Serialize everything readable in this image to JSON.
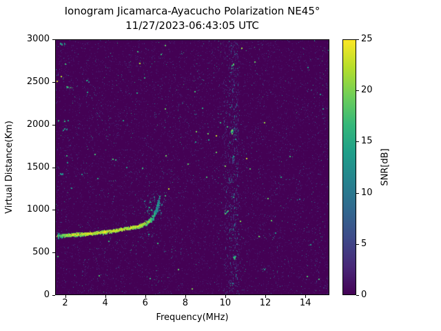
{
  "chart_data": {
    "type": "heatmap",
    "title": "Ionogram Jicamarca-Ayacucho Polarization NE45°",
    "subtitle": "11/27/2023-06:43:05 UTC",
    "xlabel": "Frequency(MHz)",
    "ylabel": "Virtual Distance(Km)",
    "xlim": [
      1.5,
      15.2
    ],
    "ylim": [
      0,
      3000
    ],
    "x_ticks": [
      2,
      4,
      6,
      8,
      10,
      12,
      14
    ],
    "y_ticks": [
      0,
      500,
      1000,
      1500,
      2000,
      2500,
      3000
    ],
    "grid": false,
    "colorbar": {
      "label": "SNR[dB]",
      "ticks": [
        0,
        5,
        10,
        15,
        20,
        25
      ],
      "min": 0,
      "max": 25,
      "colormap": "viridis",
      "viridis_stops": [
        "#440154",
        "#482878",
        "#3e4a89",
        "#31688e",
        "#26828e",
        "#1f9e89",
        "#35b779",
        "#6ece58",
        "#b5de2b",
        "#fde725"
      ]
    },
    "echo_trace": {
      "description": "F-region ionospheric echo trace, critical frequency near 6.7 MHz",
      "points": [
        [
          1.65,
          700
        ],
        [
          2.0,
          706
        ],
        [
          2.5,
          714
        ],
        [
          3.0,
          724
        ],
        [
          3.5,
          735
        ],
        [
          4.0,
          748
        ],
        [
          4.5,
          763
        ],
        [
          5.0,
          782
        ],
        [
          5.3,
          795
        ],
        [
          5.6,
          812
        ],
        [
          5.9,
          835
        ],
        [
          6.1,
          858
        ],
        [
          6.25,
          885
        ],
        [
          6.35,
          915
        ],
        [
          6.45,
          950
        ],
        [
          6.52,
          990
        ],
        [
          6.58,
          1030
        ],
        [
          6.63,
          1070
        ],
        [
          6.68,
          1110
        ]
      ],
      "snr_profile": [
        [
          1.6,
          18
        ],
        [
          1.9,
          21
        ],
        [
          2.3,
          24
        ],
        [
          5.8,
          24
        ],
        [
          6.2,
          21
        ],
        [
          6.45,
          16
        ],
        [
          6.7,
          12
        ]
      ],
      "width_profile": [
        [
          1.6,
          3.5
        ],
        [
          2.2,
          3
        ],
        [
          5.6,
          3
        ],
        [
          6.2,
          4
        ],
        [
          6.5,
          6
        ],
        [
          6.7,
          8
        ]
      ],
      "tip_scatter": {
        "freq_range": [
          5.95,
          6.8
        ],
        "vdist_range": [
          930,
          1180
        ],
        "count": 50,
        "snr": [
          8,
          16
        ]
      }
    },
    "interference_bands": [
      {
        "freq_range": [
          10.15,
          10.65
        ],
        "count": 520,
        "snr": [
          2,
          13
        ]
      },
      {
        "freq_range": [
          9.9,
          10.1
        ],
        "count": 120,
        "snr": [
          2,
          9
        ]
      }
    ],
    "hotspots": [
      {
        "freq": 1.72,
        "vdist": 695,
        "snr": 20,
        "n": 12,
        "w": 8,
        "h": 6
      },
      {
        "freq": 2.2,
        "vdist": 2440,
        "snr": 16,
        "n": 10,
        "w": 10,
        "h": 3
      },
      {
        "freq": 1.85,
        "vdist": 2950,
        "snr": 14,
        "n": 7,
        "w": 8,
        "h": 3
      },
      {
        "freq": 2.0,
        "vdist": 1950,
        "snr": 13,
        "n": 6,
        "w": 7,
        "h": 3
      },
      {
        "freq": 1.75,
        "vdist": 1430,
        "snr": 13,
        "n": 6,
        "w": 6,
        "h": 3
      },
      {
        "freq": 3.1,
        "vdist": 2520,
        "snr": 12,
        "n": 5,
        "w": 5,
        "h": 3
      },
      {
        "freq": 10.35,
        "vdist": 2690,
        "snr": 17,
        "n": 9,
        "w": 4,
        "h": 9
      },
      {
        "freq": 10.3,
        "vdist": 1930,
        "snr": 16,
        "n": 8,
        "w": 4,
        "h": 8
      },
      {
        "freq": 10.4,
        "vdist": 1620,
        "snr": 14,
        "n": 6,
        "w": 4,
        "h": 6
      },
      {
        "freq": 10.05,
        "vdist": 980,
        "snr": 15,
        "n": 8,
        "w": 5,
        "h": 6
      },
      {
        "freq": 10.45,
        "vdist": 440,
        "snr": 15,
        "n": 7,
        "w": 4,
        "h": 6
      },
      {
        "freq": 10.3,
        "vdist": 130,
        "snr": 14,
        "n": 6,
        "w": 4,
        "h": 5
      },
      {
        "freq": 11.9,
        "vdist": 300,
        "snr": 12,
        "n": 5,
        "w": 5,
        "h": 4
      },
      {
        "freq": 13.6,
        "vdist": 1120,
        "snr": 11,
        "n": 4,
        "w": 5,
        "h": 4
      }
    ],
    "noise": {
      "seed": 7,
      "layers": [
        {
          "count": 9000,
          "snr": [
            0.4,
            2.8
          ],
          "size": 1
        },
        {
          "count": 1500,
          "snr": [
            3,
            9
          ],
          "size": 1
        },
        {
          "count": 380,
          "snr": [
            9,
            16
          ],
          "size": 1
        },
        {
          "count": 60,
          "snr": [
            13,
            19
          ],
          "size": 2
        },
        {
          "count": 14,
          "snr": [
            19,
            24
          ],
          "size": 2
        }
      ]
    }
  },
  "colors": {
    "figure_background": "#ffffff",
    "axes_text": "#000000",
    "heatmap_background": "#440154",
    "trace_peak": "#fde725"
  }
}
